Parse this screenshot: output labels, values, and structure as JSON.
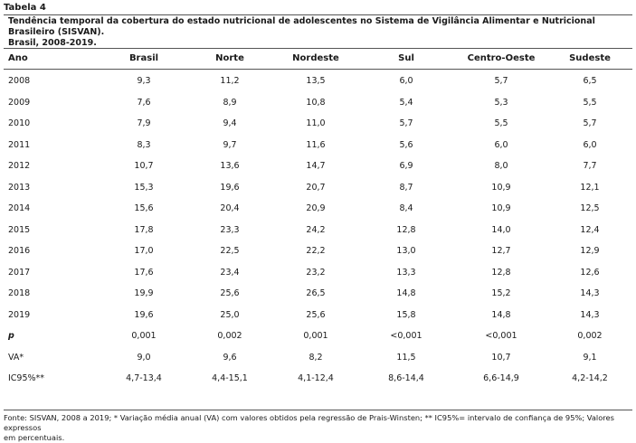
{
  "table_label": "Tabela 4",
  "caption_line1": "Tendência temporal da cobertura do estado nutricional de adolescentes no Sistema de Vigilância Alimentar e Nutricional Brasileiro (SISVAN).",
  "caption_line2": "Brasil, 2008-2019.",
  "headers": [
    "Ano",
    "Brasil",
    "Norte",
    "Nordeste",
    "Sul",
    "Centro-Oeste",
    "Sudeste"
  ],
  "rows": [
    [
      "2008",
      "9,3",
      "11,2",
      "13,5",
      "6,0",
      "5,7",
      "6,5"
    ],
    [
      "2009",
      "7,6",
      "8,9",
      "10,8",
      "5,4",
      "5,3",
      "5,5"
    ],
    [
      "2010",
      "7,9",
      "9,4",
      "11,0",
      "5,7",
      "5,5",
      "5,7"
    ],
    [
      "2011",
      "8,3",
      "9,7",
      "11,6",
      "5,6",
      "6,0",
      "6,0"
    ],
    [
      "2012",
      "10,7",
      "13,6",
      "14,7",
      "6,9",
      "8,0",
      "7,7"
    ],
    [
      "2013",
      "15,3",
      "19,6",
      "20,7",
      "8,7",
      "10,9",
      "12,1"
    ],
    [
      "2014",
      "15,6",
      "20,4",
      "20,9",
      "8,4",
      "10,9",
      "12,5"
    ],
    [
      "2015",
      "17,8",
      "23,3",
      "24,2",
      "12,8",
      "14,0",
      "12,4"
    ],
    [
      "2016",
      "17,0",
      "22,5",
      "22,2",
      "13,0",
      "12,7",
      "12,9"
    ],
    [
      "2017",
      "17,6",
      "23,4",
      "23,2",
      "13,3",
      "12,8",
      "12,6"
    ],
    [
      "2018",
      "19,9",
      "25,6",
      "26,5",
      "14,8",
      "15,2",
      "14,3"
    ],
    [
      "2019",
      "19,6",
      "25,0",
      "25,6",
      "15,8",
      "14,8",
      "14,3"
    ],
    [
      "p",
      "0,001",
      "0,002",
      "0,001",
      "<0,001",
      "<0,001",
      "0,002"
    ],
    [
      "VA*",
      "9,0",
      "9,6",
      "8,2",
      "11,5",
      "10,7",
      "9,1"
    ],
    [
      "IC95%**",
      "4,7-13,4",
      "4,4-15,1",
      "4,1-12,4",
      "8,6-14,4",
      "6,6-14,9",
      "4,2-14,2"
    ]
  ],
  "footnote_line1": "Fonte: SISVAN, 2008 a 2019; * Variação média anual (VA) com valores obtidos pela regressão de Prais-Winsten; ** IC95%= intervalo de confiança de 95%; Valores expressos",
  "footnote_line2": "em percentuais."
}
